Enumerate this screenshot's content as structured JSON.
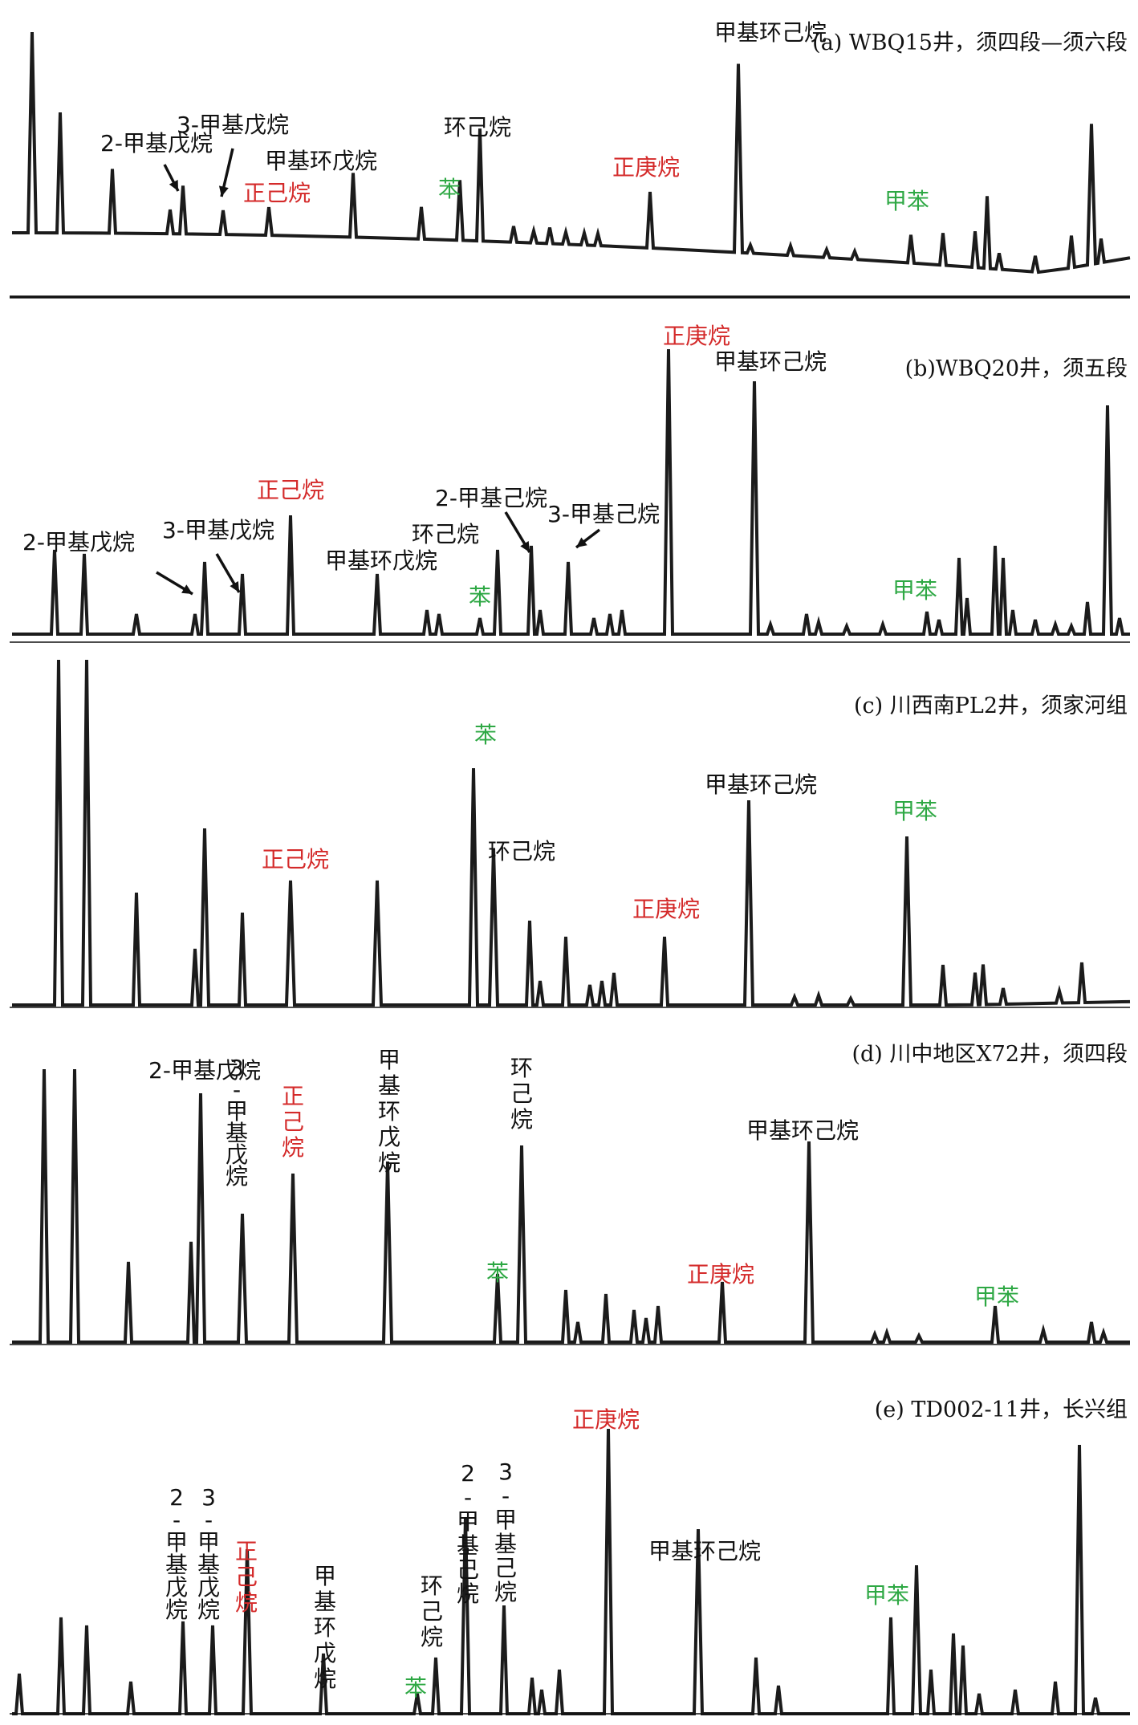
{
  "colors": {
    "black": "#111111",
    "red": "#d42a2a",
    "green": "#2ea844"
  },
  "chart_data": [
    {
      "type": "line",
      "title": "(a) WBQ15井，须四段—须六段",
      "labels": [
        {
          "text": "甲基环己烷",
          "color": "black"
        },
        {
          "text": "2-甲基戊烷",
          "color": "black"
        },
        {
          "text": "3-甲基戊烷",
          "color": "black"
        },
        {
          "text": "正己烷",
          "color": "red"
        },
        {
          "text": "甲基环戊烷",
          "color": "black"
        },
        {
          "text": "苯",
          "color": "green"
        },
        {
          "text": "环己烷",
          "color": "black"
        },
        {
          "text": "正庚烷",
          "color": "red"
        },
        {
          "text": "甲苯",
          "color": "green"
        }
      ]
    },
    {
      "type": "line",
      "title": "(b)WBQ20井，须五段",
      "labels": [
        {
          "text": "正庚烷",
          "color": "red"
        },
        {
          "text": "甲基环己烷",
          "color": "black"
        },
        {
          "text": "正己烷",
          "color": "red"
        },
        {
          "text": "2-甲基戊烷",
          "color": "black"
        },
        {
          "text": "3-甲基戊烷",
          "color": "black"
        },
        {
          "text": "2-甲基己烷",
          "color": "black"
        },
        {
          "text": "环己烷",
          "color": "black"
        },
        {
          "text": "3-甲基己烷",
          "color": "black"
        },
        {
          "text": "甲基环戊烷",
          "color": "black"
        },
        {
          "text": "苯",
          "color": "green"
        },
        {
          "text": "甲苯",
          "color": "green"
        }
      ]
    },
    {
      "type": "line",
      "title": "(c) 川西南PL2井，须家河组",
      "labels": [
        {
          "text": "苯",
          "color": "green"
        },
        {
          "text": "甲基环己烷",
          "color": "black"
        },
        {
          "text": "甲苯",
          "color": "green"
        },
        {
          "text": "正己烷",
          "color": "red"
        },
        {
          "text": "环己烷",
          "color": "black"
        },
        {
          "text": "正庚烷",
          "color": "red"
        }
      ]
    },
    {
      "type": "line",
      "title": "(d) 川中地区X72井，须四段",
      "labels": [
        {
          "text": "2-甲基戊烷",
          "color": "black"
        },
        {
          "text": "3-甲基戊烷",
          "color": "black"
        },
        {
          "text": "正己烷",
          "color": "red"
        },
        {
          "text": "甲基环戊烷",
          "color": "black"
        },
        {
          "text": "环己烷",
          "color": "black"
        },
        {
          "text": "甲基环己烷",
          "color": "black"
        },
        {
          "text": "苯",
          "color": "green"
        },
        {
          "text": "正庚烷",
          "color": "red"
        },
        {
          "text": "甲苯",
          "color": "green"
        }
      ]
    },
    {
      "type": "line",
      "title": "(e) TD002-11井，长兴组",
      "labels": [
        {
          "text": "正庚烷",
          "color": "red"
        },
        {
          "text": "2-甲基己烷",
          "color": "black"
        },
        {
          "text": "3-甲基己烷",
          "color": "black"
        },
        {
          "text": "2-甲基戊烷",
          "color": "black"
        },
        {
          "text": "3-甲基戊烷",
          "color": "black"
        },
        {
          "text": "正己烷",
          "color": "red"
        },
        {
          "text": "甲基环戊烷",
          "color": "black"
        },
        {
          "text": "环己烷",
          "color": "black"
        },
        {
          "text": "甲基环己烷",
          "color": "black"
        },
        {
          "text": "甲苯",
          "color": "green"
        },
        {
          "text": "苯",
          "color": "green"
        }
      ]
    }
  ]
}
